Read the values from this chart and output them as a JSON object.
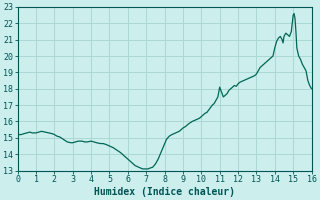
{
  "xlabel": "Humidex (Indice chaleur)",
  "xlim": [
    0,
    16
  ],
  "ylim": [
    13,
    23
  ],
  "xticks": [
    0,
    1,
    2,
    3,
    4,
    5,
    6,
    7,
    8,
    9,
    10,
    11,
    12,
    13,
    14,
    15,
    16
  ],
  "yticks": [
    13,
    14,
    15,
    16,
    17,
    18,
    19,
    20,
    21,
    22,
    23
  ],
  "bg_color": "#cceeed",
  "grid_color": "#aad8d4",
  "line_color": "#006655",
  "x": [
    0.0,
    0.1,
    0.2,
    0.33,
    0.5,
    0.66,
    0.8,
    1.0,
    1.15,
    1.3,
    1.5,
    1.7,
    1.9,
    2.0,
    2.15,
    2.3,
    2.5,
    2.7,
    2.9,
    3.0,
    3.15,
    3.3,
    3.5,
    3.65,
    3.8,
    4.0,
    4.15,
    4.3,
    4.5,
    4.65,
    4.8,
    5.0,
    5.2,
    5.4,
    5.6,
    5.8,
    6.0,
    6.2,
    6.4,
    6.6,
    6.8,
    7.0,
    7.1,
    7.2,
    7.35,
    7.5,
    7.65,
    7.8,
    7.95,
    8.1,
    8.25,
    8.4,
    8.6,
    8.8,
    9.0,
    9.15,
    9.3,
    9.5,
    9.7,
    9.9,
    10.0,
    10.1,
    10.2,
    10.3,
    10.4,
    10.5,
    10.6,
    10.7,
    10.8,
    10.9,
    11.0,
    11.1,
    11.2,
    11.3,
    11.4,
    11.5,
    11.6,
    11.7,
    11.8,
    11.9,
    12.0,
    12.1,
    12.2,
    12.3,
    12.4,
    12.5,
    12.6,
    12.7,
    12.8,
    12.9,
    13.0,
    13.1,
    13.2,
    13.3,
    13.4,
    13.5,
    13.6,
    13.7,
    13.8,
    13.9,
    14.0,
    14.05,
    14.1,
    14.15,
    14.2,
    14.25,
    14.3,
    14.35,
    14.4,
    14.45,
    14.5,
    14.55,
    14.6,
    14.7,
    14.8,
    14.9,
    15.0,
    15.05,
    15.1,
    15.15,
    15.2,
    15.3,
    15.4,
    15.5,
    15.6,
    15.7,
    15.8,
    15.9,
    16.0
  ],
  "y": [
    15.2,
    15.2,
    15.2,
    15.25,
    15.3,
    15.35,
    15.3,
    15.3,
    15.35,
    15.4,
    15.35,
    15.3,
    15.25,
    15.2,
    15.1,
    15.05,
    14.9,
    14.75,
    14.7,
    14.7,
    14.75,
    14.8,
    14.8,
    14.75,
    14.75,
    14.8,
    14.75,
    14.7,
    14.65,
    14.65,
    14.6,
    14.5,
    14.4,
    14.25,
    14.1,
    13.9,
    13.7,
    13.5,
    13.3,
    13.2,
    13.1,
    13.1,
    13.1,
    13.15,
    13.2,
    13.4,
    13.7,
    14.1,
    14.5,
    14.9,
    15.1,
    15.2,
    15.3,
    15.4,
    15.6,
    15.7,
    15.85,
    16.0,
    16.1,
    16.2,
    16.3,
    16.4,
    16.5,
    16.55,
    16.7,
    16.85,
    17.0,
    17.1,
    17.3,
    17.5,
    18.1,
    17.8,
    17.5,
    17.6,
    17.7,
    17.9,
    18.0,
    18.1,
    18.2,
    18.15,
    18.3,
    18.4,
    18.45,
    18.5,
    18.55,
    18.6,
    18.65,
    18.7,
    18.75,
    18.8,
    18.9,
    19.1,
    19.3,
    19.4,
    19.5,
    19.6,
    19.7,
    19.8,
    19.9,
    20.0,
    20.5,
    20.7,
    20.9,
    21.0,
    21.1,
    21.15,
    21.2,
    21.1,
    21.0,
    20.8,
    21.2,
    21.3,
    21.4,
    21.3,
    21.2,
    21.5,
    22.5,
    22.6,
    22.3,
    21.5,
    20.5,
    20.0,
    19.8,
    19.5,
    19.3,
    19.1,
    18.5,
    18.2,
    18.0
  ]
}
